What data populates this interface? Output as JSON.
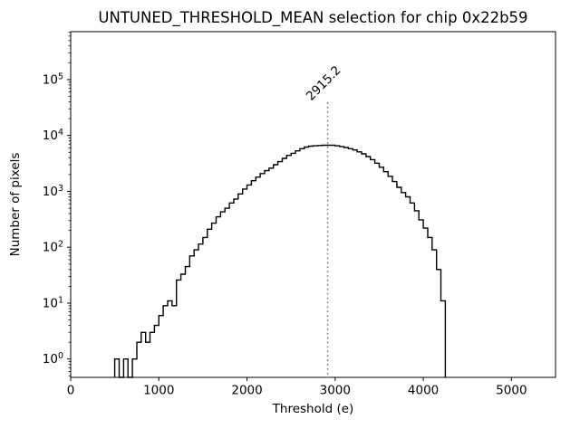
{
  "window": {
    "background": "#ffffff"
  },
  "chart_data": {
    "type": "bar",
    "subtype": "step-histogram",
    "title": "UNTUNED_THRESHOLD_MEAN selection for chip 0x22b59",
    "xlabel": "Threshold (e)",
    "ylabel": "Number of pixels",
    "xlim": [
      0,
      5500
    ],
    "ylog": true,
    "ylim": [
      0.47,
      720000
    ],
    "x_ticks": [
      0,
      1000,
      2000,
      3000,
      4000,
      5000
    ],
    "y_tick_exponents": [
      0,
      1,
      2,
      3,
      4,
      5
    ],
    "grid": false,
    "legend": null,
    "line_color": "#000000",
    "axes_color": "#000000",
    "bin_start": 500,
    "bin_width": 50,
    "counts": [
      1,
      0,
      1,
      0,
      1,
      2,
      3,
      2,
      3,
      4,
      6,
      9,
      11,
      9,
      26,
      33,
      45,
      70,
      90,
      114,
      150,
      210,
      270,
      350,
      430,
      500,
      620,
      730,
      900,
      1100,
      1300,
      1550,
      1800,
      2080,
      2350,
      2600,
      3000,
      3400,
      3900,
      4400,
      4800,
      5300,
      5800,
      6200,
      6450,
      6550,
      6620,
      6680,
      6700,
      6680,
      6550,
      6350,
      6100,
      5800,
      5500,
      5100,
      4700,
      4200,
      3700,
      3200,
      2700,
      2250,
      1860,
      1500,
      1180,
      950,
      800,
      620,
      450,
      310,
      220,
      150,
      90,
      40,
      11
    ],
    "vline": {
      "x": 2915.2,
      "label": "2915.2",
      "color": "#808080",
      "style": "dotted"
    }
  }
}
